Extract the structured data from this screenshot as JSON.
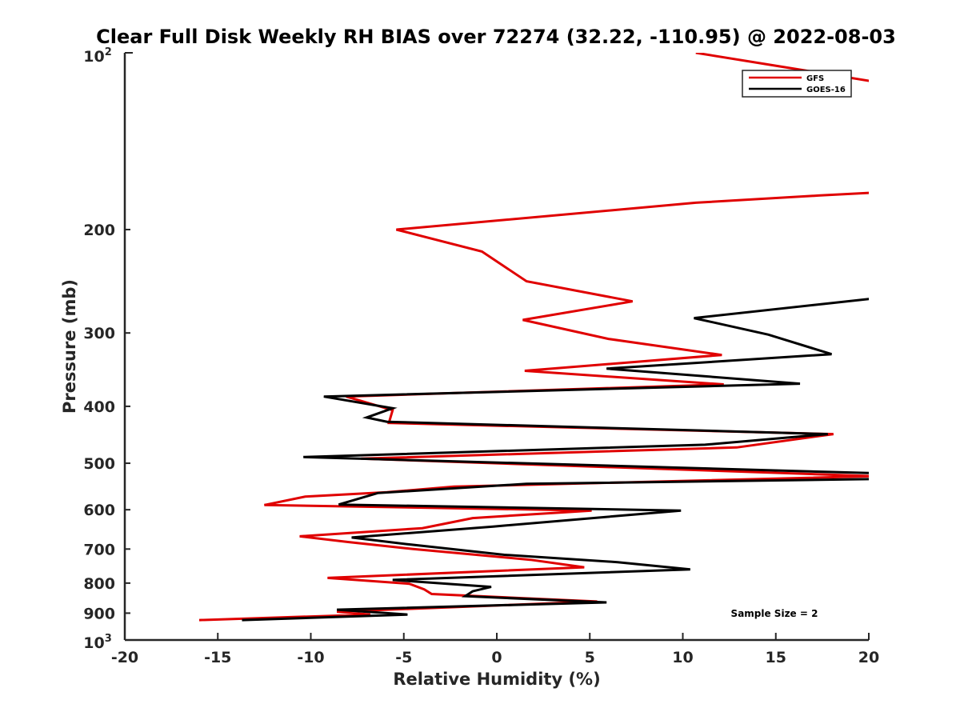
{
  "chart_data": {
    "type": "line",
    "title": "Clear Full Disk Weekly RH BIAS over 72274 (32.22, -110.95) @ 2022-08-03",
    "xlabel": "Relative Humidity (%)",
    "ylabel": "Pressure (mb)",
    "xlim": [
      -20,
      20
    ],
    "ylim": [
      100,
      1000
    ],
    "y_scale": "log",
    "y_reversed": true,
    "grid": false,
    "legend_position": "top-right",
    "x_ticks": [
      "-20",
      "-15",
      "-10",
      "-5",
      "0",
      "5",
      "10",
      "15",
      "20"
    ],
    "y_ticks": [
      "200",
      "300",
      "400",
      "500",
      "600",
      "700",
      "800",
      "900"
    ],
    "annotation": "Sample Size = 2",
    "series": [
      {
        "name": "GFS",
        "color": "#e00000",
        "points": [
          {
            "x": 10.7,
            "y": 100
          },
          {
            "x": 20.3,
            "y": 112
          },
          {
            "x": 20.3,
            "y": 173
          },
          {
            "x": 17.3,
            "y": 175
          },
          {
            "x": 10.7,
            "y": 180
          },
          {
            "x": -5.4,
            "y": 200
          },
          {
            "x": -0.8,
            "y": 218
          },
          {
            "x": 1.6,
            "y": 245
          },
          {
            "x": 7.3,
            "y": 265
          },
          {
            "x": 1.4,
            "y": 285
          },
          {
            "x": 6.0,
            "y": 307
          },
          {
            "x": 12.1,
            "y": 327
          },
          {
            "x": 1.5,
            "y": 348
          },
          {
            "x": 12.2,
            "y": 367
          },
          {
            "x": -8.1,
            "y": 385
          },
          {
            "x": -5.6,
            "y": 406
          },
          {
            "x": -5.8,
            "y": 427
          },
          {
            "x": 18.1,
            "y": 446
          },
          {
            "x": 12.9,
            "y": 470
          },
          {
            "x": -7.3,
            "y": 491
          },
          {
            "x": 20.3,
            "y": 526
          },
          {
            "x": -2.3,
            "y": 548
          },
          {
            "x": -5.9,
            "y": 560
          },
          {
            "x": -10.3,
            "y": 570
          },
          {
            "x": -12.5,
            "y": 589
          },
          {
            "x": 5.1,
            "y": 602
          },
          {
            "x": -1.3,
            "y": 620
          },
          {
            "x": -4.0,
            "y": 645
          },
          {
            "x": -10.6,
            "y": 666
          },
          {
            "x": -8.0,
            "y": 681
          },
          {
            "x": -4.5,
            "y": 700
          },
          {
            "x": 1.8,
            "y": 730
          },
          {
            "x": 4.7,
            "y": 752
          },
          {
            "x": -9.1,
            "y": 784
          },
          {
            "x": -4.7,
            "y": 802
          },
          {
            "x": -3.9,
            "y": 820
          },
          {
            "x": -3.5,
            "y": 835
          },
          {
            "x": 5.4,
            "y": 860
          },
          {
            "x": -8.6,
            "y": 895
          },
          {
            "x": -6.8,
            "y": 905
          },
          {
            "x": -16.0,
            "y": 925
          }
        ]
      },
      {
        "name": "GOES-16",
        "color": "#000000",
        "points": [
          {
            "x": 20.3,
            "y": 262
          },
          {
            "x": 10.6,
            "y": 283
          },
          {
            "x": 14.6,
            "y": 302
          },
          {
            "x": 18.0,
            "y": 326
          },
          {
            "x": 5.9,
            "y": 345
          },
          {
            "x": 16.3,
            "y": 366
          },
          {
            "x": -9.3,
            "y": 385
          },
          {
            "x": -5.6,
            "y": 403
          },
          {
            "x": -7.0,
            "y": 418
          },
          {
            "x": -5.9,
            "y": 425
          },
          {
            "x": 17.8,
            "y": 446
          },
          {
            "x": 11.2,
            "y": 465
          },
          {
            "x": -10.4,
            "y": 488
          },
          {
            "x": 20.3,
            "y": 520
          },
          {
            "x": 20.3,
            "y": 532
          },
          {
            "x": 1.6,
            "y": 542
          },
          {
            "x": -6.4,
            "y": 562
          },
          {
            "x": -8.5,
            "y": 588
          },
          {
            "x": 9.9,
            "y": 602
          },
          {
            "x": -0.2,
            "y": 641
          },
          {
            "x": -7.8,
            "y": 669
          },
          {
            "x": -4.6,
            "y": 688
          },
          {
            "x": 0.4,
            "y": 716
          },
          {
            "x": 6.5,
            "y": 737
          },
          {
            "x": 10.4,
            "y": 758
          },
          {
            "x": -5.6,
            "y": 790
          },
          {
            "x": -0.3,
            "y": 812
          },
          {
            "x": -1.3,
            "y": 826
          },
          {
            "x": -1.7,
            "y": 842
          },
          {
            "x": 5.9,
            "y": 863
          },
          {
            "x": -8.6,
            "y": 888
          },
          {
            "x": -4.8,
            "y": 905
          },
          {
            "x": -13.7,
            "y": 925
          }
        ]
      }
    ]
  }
}
